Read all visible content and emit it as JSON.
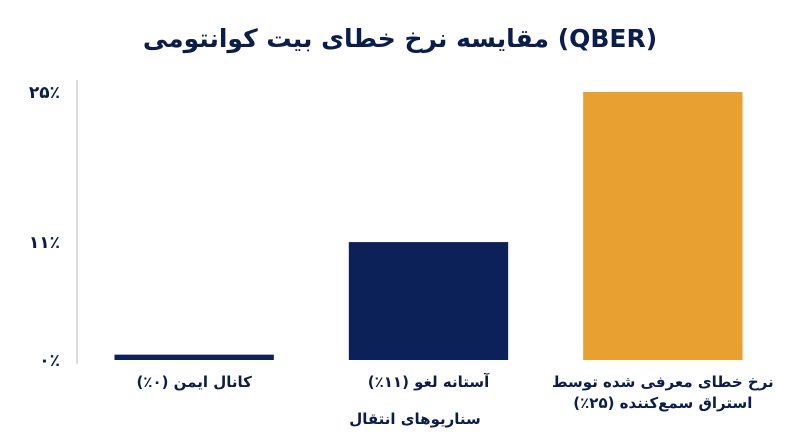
{
  "chart_data": {
    "type": "bar",
    "title": "مقایسه نرخ خطای بیت کوانتومی (QBER)",
    "xlabel": "سناریوهای انتقال",
    "ylabel": "",
    "ylim": [
      0,
      25
    ],
    "y_ticks": [
      {
        "value": 0,
        "label": "۰٪"
      },
      {
        "value": 11,
        "label": "۱۱٪"
      },
      {
        "value": 25,
        "label": "۲۵٪"
      }
    ],
    "categories": [
      [
        "کانال ایمن (۰٪)"
      ],
      [
        "آستانه لغو (۱۱٪)"
      ],
      [
        "نرخ خطای معرفی شده توسط",
        "استراق سمع‌کننده (۲۵٪)"
      ]
    ],
    "values": [
      0.5,
      11,
      25
    ],
    "colors": [
      "#0b2157",
      "#0b2157",
      "#e8a030"
    ],
    "grid": false
  }
}
